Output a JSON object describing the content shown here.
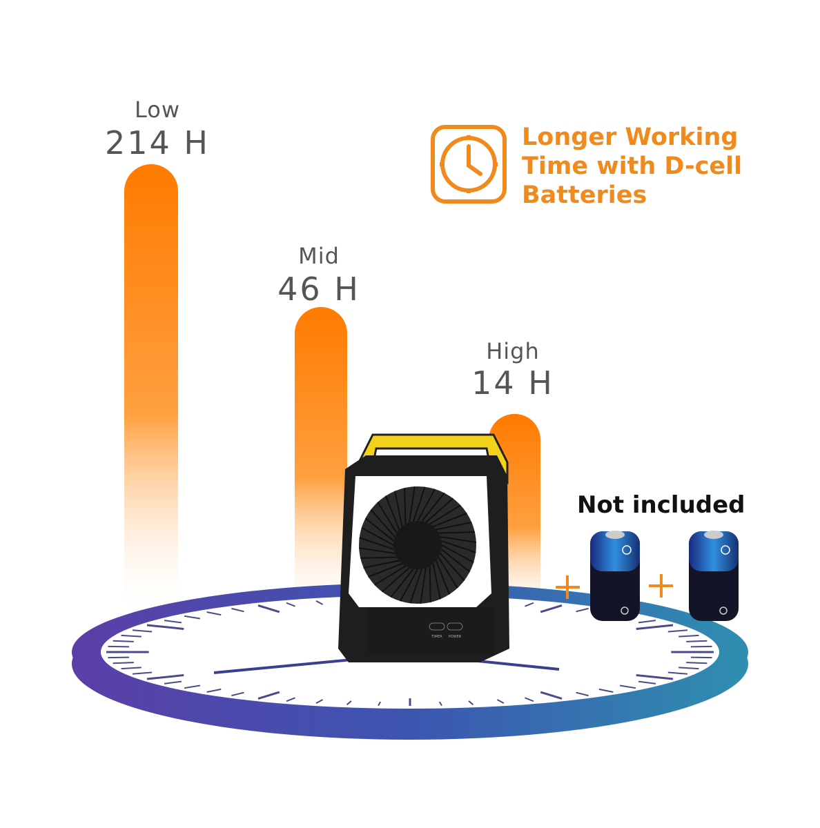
{
  "headline": [
    "Longer Working",
    "Time with D-cell",
    "Batteries"
  ],
  "modes": [
    {
      "level": "Low",
      "hours": "214 H"
    },
    {
      "level": "Mid",
      "hours": "46 H"
    },
    {
      "level": "High",
      "hours": "14 H"
    }
  ],
  "battery_note": "Not included",
  "fan_buttons": [
    "TIMER",
    "POWER"
  ],
  "icons": [
    "clock-icon",
    "battery-icon",
    "plus-icon",
    "fan-icon"
  ],
  "colors": {
    "accent": "#f08a1c",
    "bar": "#ff8000",
    "platform_left": "#5b3fa8",
    "platform_right": "#2f8fb0",
    "handle": "#f2d21b"
  }
}
